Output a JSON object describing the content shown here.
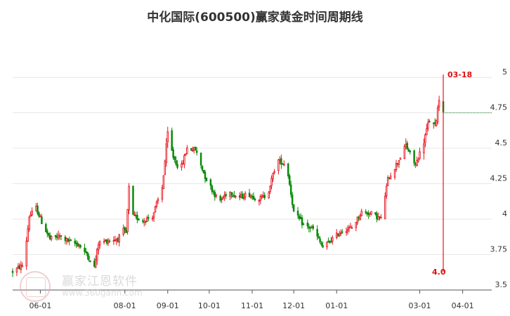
{
  "title": "中化国际(600500)赢家黄金时间周期线",
  "watermark": {
    "text": "赢家江恩软件",
    "url": "www.360gann.com"
  },
  "colors": {
    "up": "#e8141e",
    "down": "#0a8a0a",
    "marker": "#e8141e",
    "dotted": "#2a8a2a",
    "grid": "#e6e6e6"
  },
  "chart_data": {
    "type": "candlestick",
    "title": "中化国际(600500)赢家黄金时间周期线",
    "y_ticks": [
      3.5,
      3.75,
      4,
      4.25,
      4.5,
      4.75,
      5
    ],
    "y_tick_labels": [
      "3.5",
      "3.75",
      "4",
      "4.25",
      "4.5",
      "4.75",
      "5"
    ],
    "ylim": [
      3.5,
      5.1
    ],
    "x_ticks": [
      {
        "label": "06-01",
        "date": "2023-06-01"
      },
      {
        "label": "08-01",
        "date": "2023-08-01"
      },
      {
        "label": "09-01",
        "date": "2023-09-01"
      },
      {
        "label": "10-01",
        "date": "2023-10-01"
      },
      {
        "label": "11-01",
        "date": "2023-11-01"
      },
      {
        "label": "12-01",
        "date": "2023-12-01"
      },
      {
        "label": "01-01",
        "date": "2024-01-01"
      },
      {
        "label": "03-01",
        "date": "2024-03-01"
      },
      {
        "label": "04-01",
        "date": "2024-04-01"
      }
    ],
    "xlim": [
      "2023-05-12",
      "2024-04-22"
    ],
    "price_path": [
      [
        "2023-05-12",
        3.63
      ],
      [
        "2023-05-20",
        3.68
      ],
      [
        "2023-05-24",
        4.02
      ],
      [
        "2023-05-29",
        4.08
      ],
      [
        "2023-06-02",
        3.98
      ],
      [
        "2023-06-08",
        3.86
      ],
      [
        "2023-06-15",
        3.88
      ],
      [
        "2023-06-22",
        3.84
      ],
      [
        "2023-06-29",
        3.82
      ],
      [
        "2023-07-06",
        3.73
      ],
      [
        "2023-07-10",
        3.66
      ],
      [
        "2023-07-13",
        3.83
      ],
      [
        "2023-07-20",
        3.85
      ],
      [
        "2023-07-27",
        3.86
      ],
      [
        "2023-07-31",
        3.92
      ],
      [
        "2023-08-02",
        3.9
      ],
      [
        "2023-08-04",
        4.22
      ],
      [
        "2023-08-07",
        4.02
      ],
      [
        "2023-08-14",
        3.99
      ],
      [
        "2023-08-21",
        4.02
      ],
      [
        "2023-08-28",
        4.22
      ],
      [
        "2023-09-01",
        4.6
      ],
      [
        "2023-09-05",
        4.44
      ],
      [
        "2023-09-10",
        4.34
      ],
      [
        "2023-09-15",
        4.5
      ],
      [
        "2023-09-21",
        4.49
      ],
      [
        "2023-09-28",
        4.3
      ],
      [
        "2023-10-08",
        4.12
      ],
      [
        "2023-10-15",
        4.2
      ],
      [
        "2023-10-22",
        4.15
      ],
      [
        "2023-10-29",
        4.18
      ],
      [
        "2023-11-05",
        4.14
      ],
      [
        "2023-11-12",
        4.17
      ],
      [
        "2023-11-19",
        4.42
      ],
      [
        "2023-11-26",
        4.38
      ],
      [
        "2023-12-01",
        4.05
      ],
      [
        "2023-12-08",
        3.96
      ],
      [
        "2023-12-15",
        3.93
      ],
      [
        "2023-12-22",
        3.8
      ],
      [
        "2023-12-29",
        3.86
      ],
      [
        "2024-01-05",
        3.92
      ],
      [
        "2024-01-12",
        3.94
      ],
      [
        "2024-01-19",
        4.05
      ],
      [
        "2024-01-26",
        4.04
      ],
      [
        "2024-02-02",
        4.0
      ],
      [
        "2024-02-07",
        4.28
      ],
      [
        "2024-02-14",
        4.4
      ],
      [
        "2024-02-20",
        4.52
      ],
      [
        "2024-02-27",
        4.38
      ],
      [
        "2024-03-04",
        4.55
      ],
      [
        "2024-03-08",
        4.7
      ],
      [
        "2024-03-12",
        4.65
      ],
      [
        "2024-03-15",
        4.85
      ],
      [
        "2024-03-18",
        4.78
      ]
    ],
    "marker_line": {
      "date": "2024-03-18",
      "from": 3.63,
      "to": 5.02,
      "label_top": "03-18",
      "label_bottom": "4.0"
    },
    "reference_line": {
      "value": 4.75,
      "from": "2024-03-18",
      "to": "2024-04-22"
    }
  }
}
